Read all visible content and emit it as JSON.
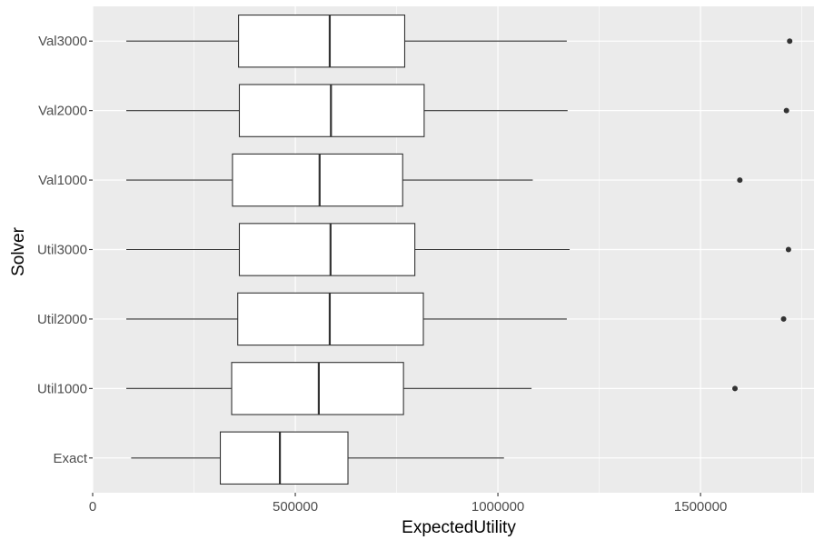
{
  "chart_data": {
    "type": "boxplot",
    "orientation": "horizontal",
    "xlabel": "ExpectedUtility",
    "ylabel": "Solver",
    "xlim": [
      0,
      1780000
    ],
    "x_ticks": [
      0,
      500000,
      1000000,
      1500000
    ],
    "x_tick_labels": [
      "0",
      "500000",
      "1000000",
      "1500000"
    ],
    "grid": true,
    "legend": "none",
    "colors": {
      "panel": "#ebebeb",
      "grid_major": "#ffffff",
      "box_fill": "#ffffff",
      "box_line": "#333333",
      "outlier": "#333333"
    },
    "categories": [
      "Val3000",
      "Val2000",
      "Val1000",
      "Util3000",
      "Util2000",
      "Util1000",
      "Exact"
    ],
    "boxes": [
      {
        "category": "Val3000",
        "whisker_low": 83000,
        "q1": 360000,
        "median": 585000,
        "q3": 770000,
        "whisker_high": 1170000,
        "outliers": [
          1720000
        ]
      },
      {
        "category": "Val2000",
        "whisker_low": 83000,
        "q1": 362000,
        "median": 588000,
        "q3": 818000,
        "whisker_high": 1172000,
        "outliers": [
          1712000
        ]
      },
      {
        "category": "Val1000",
        "whisker_low": 83000,
        "q1": 345000,
        "median": 560000,
        "q3": 765000,
        "whisker_high": 1086000,
        "outliers": [
          1597000
        ]
      },
      {
        "category": "Util3000",
        "whisker_low": 83000,
        "q1": 362000,
        "median": 587000,
        "q3": 795000,
        "whisker_high": 1177000,
        "outliers": [
          1717000
        ]
      },
      {
        "category": "Util2000",
        "whisker_low": 83000,
        "q1": 358000,
        "median": 585000,
        "q3": 816000,
        "whisker_high": 1170000,
        "outliers": [
          1705000
        ]
      },
      {
        "category": "Util1000",
        "whisker_low": 83000,
        "q1": 343000,
        "median": 558000,
        "q3": 767000,
        "whisker_high": 1083000,
        "outliers": [
          1585000
        ]
      },
      {
        "category": "Exact",
        "whisker_low": 95000,
        "q1": 315000,
        "median": 462000,
        "q3": 630000,
        "whisker_high": 1015000,
        "outliers": []
      }
    ]
  }
}
